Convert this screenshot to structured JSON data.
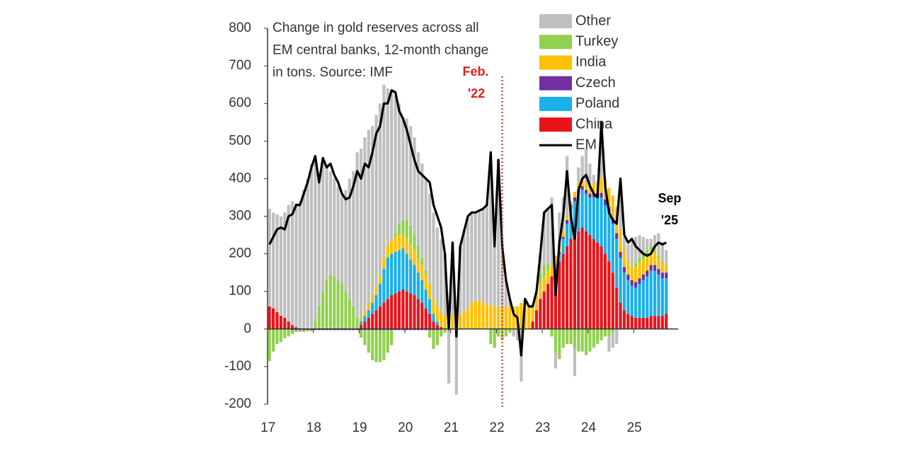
{
  "chart_data": {
    "type": "stacked_bar_line",
    "title": [
      "Change in gold reserves across all",
      "EM central banks, 12-month change",
      "in tons. Source: IMF"
    ],
    "categories": [
      "17",
      null,
      null,
      null,
      null,
      null,
      null,
      null,
      null,
      null,
      null,
      null,
      "18",
      null,
      null,
      null,
      null,
      null,
      null,
      null,
      null,
      null,
      null,
      null,
      "19",
      null,
      null,
      null,
      null,
      null,
      null,
      null,
      null,
      null,
      null,
      null,
      "20",
      null,
      null,
      null,
      null,
      null,
      null,
      null,
      null,
      null,
      null,
      null,
      "21",
      null,
      null,
      null,
      null,
      null,
      null,
      null,
      null,
      null,
      null,
      null,
      "22",
      null,
      null,
      null,
      null,
      null,
      null,
      null,
      null,
      null,
      null,
      null,
      "23",
      null,
      null,
      null,
      null,
      null,
      null,
      null,
      null,
      null,
      null,
      null,
      "24",
      null,
      null,
      null,
      null,
      null,
      null,
      null,
      null,
      null,
      null,
      null,
      "25",
      null,
      null,
      null,
      null,
      null,
      null,
      null,
      null
    ],
    "series": [
      {
        "name": "China",
        "color": "#e8141b",
        "values": [
          60,
          55,
          45,
          35,
          30,
          20,
          10,
          5,
          0,
          0,
          0,
          0,
          0,
          0,
          0,
          0,
          0,
          0,
          0,
          0,
          0,
          0,
          0,
          0,
          10,
          20,
          30,
          40,
          50,
          60,
          70,
          80,
          90,
          95,
          100,
          105,
          100,
          95,
          90,
          80,
          70,
          55,
          40,
          20,
          10,
          5,
          0,
          0,
          0,
          0,
          0,
          0,
          0,
          0,
          0,
          0,
          0,
          0,
          0,
          0,
          0,
          0,
          0,
          0,
          0,
          0,
          0,
          0,
          0,
          20,
          50,
          80,
          100,
          120,
          140,
          160,
          180,
          200,
          220,
          240,
          250,
          260,
          270,
          260,
          250,
          240,
          230,
          220,
          200,
          180,
          150,
          110,
          70,
          50,
          40,
          35,
          30,
          30,
          30,
          30,
          35,
          35,
          35,
          35,
          40
        ]
      },
      {
        "name": "Poland",
        "color": "#1ab0e8",
        "values": [
          0,
          0,
          0,
          0,
          0,
          0,
          0,
          0,
          0,
          0,
          0,
          0,
          0,
          0,
          0,
          0,
          0,
          0,
          0,
          0,
          0,
          0,
          0,
          0,
          10,
          15,
          20,
          30,
          40,
          60,
          90,
          110,
          110,
          110,
          110,
          110,
          100,
          90,
          80,
          70,
          60,
          50,
          40,
          20,
          10,
          0,
          0,
          0,
          0,
          0,
          0,
          0,
          0,
          0,
          0,
          0,
          0,
          0,
          0,
          0,
          0,
          0,
          0,
          0,
          0,
          0,
          0,
          0,
          0,
          0,
          0,
          0,
          0,
          0,
          0,
          10,
          20,
          40,
          60,
          80,
          90,
          100,
          100,
          100,
          100,
          110,
          120,
          130,
          130,
          130,
          130,
          130,
          120,
          100,
          90,
          80,
          80,
          90,
          100,
          110,
          120,
          120,
          110,
          100,
          95
        ]
      },
      {
        "name": "Czech",
        "color": "#7030a0",
        "values": [
          0,
          0,
          0,
          0,
          0,
          0,
          -3,
          -3,
          -3,
          -3,
          -3,
          -3,
          -3,
          -3,
          -3,
          -3,
          -3,
          -3,
          -3,
          -3,
          -3,
          -3,
          -3,
          -3,
          -3,
          -3,
          -3,
          -3,
          -3,
          -3,
          -3,
          -3,
          -3,
          -3,
          -3,
          -3,
          -3,
          -3,
          -3,
          -3,
          -3,
          -3,
          -3,
          -3,
          -3,
          0,
          0,
          0,
          0,
          0,
          0,
          0,
          0,
          0,
          0,
          0,
          0,
          0,
          0,
          0,
          0,
          0,
          0,
          0,
          0,
          0,
          0,
          0,
          0,
          0,
          0,
          0,
          0,
          0,
          0,
          0,
          5,
          5,
          10,
          10,
          10,
          10,
          10,
          10,
          10,
          10,
          12,
          12,
          15,
          15,
          15,
          15,
          15,
          15,
          15,
          15,
          15,
          15,
          15,
          15,
          15,
          15,
          15,
          15,
          15
        ]
      },
      {
        "name": "India",
        "color": "#ffc000",
        "values": [
          0,
          0,
          0,
          0,
          0,
          0,
          0,
          0,
          0,
          0,
          0,
          0,
          0,
          0,
          0,
          0,
          0,
          0,
          0,
          0,
          0,
          0,
          0,
          0,
          10,
          15,
          20,
          20,
          25,
          25,
          30,
          35,
          35,
          40,
          40,
          35,
          40,
          40,
          40,
          40,
          40,
          40,
          40,
          40,
          40,
          40,
          35,
          30,
          40,
          40,
          40,
          45,
          55,
          70,
          75,
          75,
          70,
          65,
          65,
          60,
          60,
          60,
          60,
          60,
          60,
          60,
          70,
          70,
          60,
          40,
          40,
          40,
          40,
          35,
          30,
          25,
          20,
          15,
          10,
          10,
          15,
          20,
          20,
          20,
          20,
          25,
          30,
          40,
          50,
          50,
          60,
          70,
          60,
          50,
          40,
          35,
          40,
          40,
          40,
          40,
          40,
          35,
          30,
          25,
          20
        ]
      },
      {
        "name": "Turkey",
        "color": "#92d050",
        "values": [
          -85,
          -60,
          -40,
          -35,
          -25,
          -20,
          -10,
          -5,
          -5,
          -5,
          -3,
          -3,
          20,
          60,
          100,
          130,
          145,
          140,
          130,
          120,
          100,
          80,
          60,
          30,
          -20,
          -40,
          -60,
          -80,
          -85,
          -85,
          -80,
          -60,
          -40,
          10,
          30,
          40,
          50,
          50,
          40,
          30,
          20,
          10,
          -20,
          -50,
          -40,
          -20,
          -10,
          -5,
          0,
          0,
          0,
          0,
          0,
          0,
          0,
          0,
          0,
          0,
          -40,
          -50,
          -20,
          -30,
          -20,
          -10,
          0,
          0,
          0,
          0,
          0,
          0,
          0,
          30,
          30,
          20,
          -20,
          -60,
          -80,
          -50,
          -40,
          -40,
          -50,
          -60,
          -60,
          -70,
          -60,
          -50,
          -40,
          -30,
          -20,
          -20,
          -10,
          0,
          0,
          0,
          0,
          0,
          10,
          15,
          20,
          15,
          10,
          5,
          5,
          5,
          0
        ]
      },
      {
        "name": "Other",
        "color": "#bfbfbf",
        "values": [
          260,
          255,
          260,
          265,
          280,
          310,
          330,
          330,
          340,
          370,
          400,
          440,
          440,
          340,
          340,
          300,
          275,
          260,
          250,
          240,
          270,
          320,
          360,
          440,
          450,
          460,
          460,
          450,
          455,
          455,
          460,
          415,
          395,
          365,
          320,
          270,
          270,
          265,
          260,
          250,
          250,
          245,
          240,
          230,
          210,
          195,
          165,
          -140,
          190,
          -175,
          180,
          220,
          240,
          240,
          235,
          240,
          250,
          270,
          400,
          160,
          390,
          170,
          70,
          20,
          -20,
          -30,
          -140,
          10,
          0,
          0,
          10,
          50,
          140,
          145,
          180,
          -45,
          85,
          90,
          160,
          0,
          -75,
          40,
          60,
          90,
          60,
          25,
          0,
          150,
          5,
          -40,
          -40,
          -40,
          130,
          30,
          40,
          70,
          70,
          60,
          40,
          30,
          20,
          40,
          60,
          50,
          40
        ]
      },
      {
        "name": "EM",
        "color": "#000000",
        "kind": "line",
        "values": [
          225,
          245,
          265,
          270,
          265,
          300,
          305,
          330,
          330,
          360,
          390,
          430,
          460,
          390,
          455,
          430,
          440,
          410,
          390,
          360,
          345,
          350,
          380,
          420,
          400,
          440,
          430,
          470,
          520,
          540,
          600,
          600,
          635,
          630,
          580,
          560,
          530,
          490,
          450,
          420,
          410,
          400,
          390,
          330,
          300,
          270,
          200,
          0,
          230,
          -20,
          220,
          260,
          300,
          310,
          310,
          315,
          320,
          330,
          470,
          220,
          450,
          220,
          130,
          80,
          40,
          30,
          -70,
          80,
          60,
          60,
          100,
          200,
          310,
          320,
          330,
          90,
          230,
          300,
          420,
          300,
          240,
          370,
          400,
          410,
          380,
          360,
          350,
          550,
          380,
          310,
          290,
          280,
          400,
          250,
          230,
          240,
          220,
          210,
          200,
          195,
          200,
          220,
          230,
          225,
          230
        ]
      }
    ],
    "ylim": [
      -200,
      800
    ],
    "yticks": [
      -200,
      -100,
      0,
      100,
      200,
      300,
      400,
      500,
      600,
      700,
      800
    ],
    "annotations": [
      {
        "text": [
          "Feb.",
          "'22"
        ],
        "color": "#e0201b"
      },
      {
        "text": [
          "Sep",
          "'25"
        ],
        "color": "#000000"
      }
    ]
  }
}
